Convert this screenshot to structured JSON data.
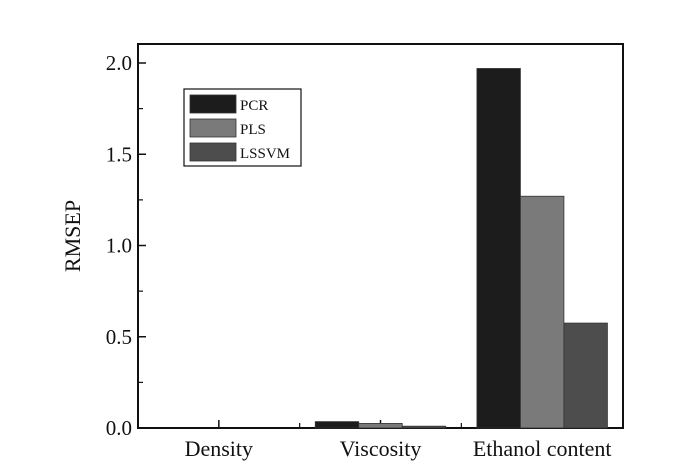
{
  "chart_data": {
    "type": "bar",
    "title": "",
    "xlabel": "",
    "ylabel": "RMSEP",
    "ylim": [
      0,
      2.1
    ],
    "yticks": [
      "0.0",
      "0.5",
      "1.0",
      "1.5",
      "2.0"
    ],
    "categories": [
      "Density",
      "Viscosity",
      "Ethanol content"
    ],
    "series": [
      {
        "name": "PCR",
        "color": "#1c1c1c",
        "values": [
          0.0,
          0.035,
          1.97
        ]
      },
      {
        "name": "PLS",
        "color": "#7a7a7a",
        "values": [
          0.0,
          0.025,
          1.27
        ]
      },
      {
        "name": "LSSVM",
        "color": "#4d4d4d",
        "values": [
          0.0,
          0.01,
          0.575
        ]
      }
    ],
    "legend": {
      "position": "top-left"
    },
    "grid": false
  }
}
